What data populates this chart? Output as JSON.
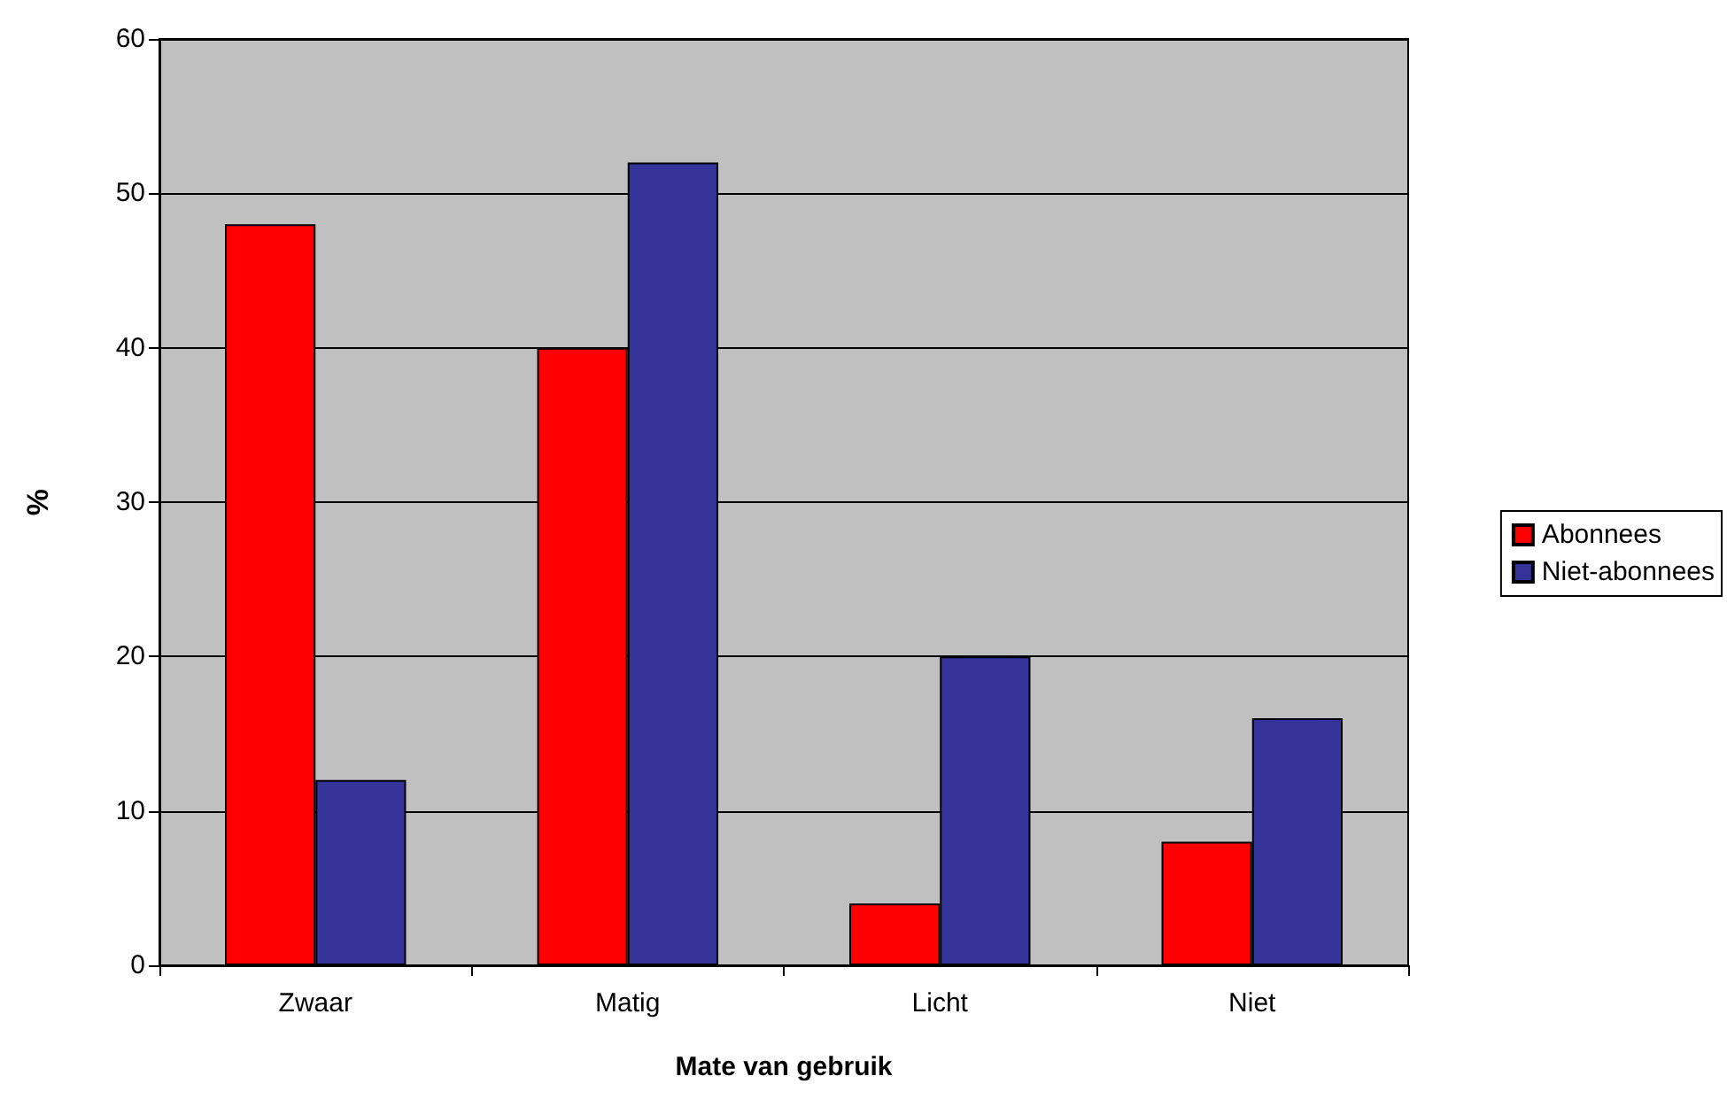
{
  "chart_data": {
    "type": "bar",
    "xlabel": "Mate van gebruik",
    "ylabel": "%",
    "categories": [
      "Zwaar",
      "Matig",
      "Licht",
      "Niet"
    ],
    "series": [
      {
        "name": "Abonnees",
        "color": "#ff0000",
        "values": [
          48,
          40,
          4,
          8
        ]
      },
      {
        "name": "Niet-abonnees",
        "color": "#333399",
        "values": [
          12,
          52,
          20,
          16
        ]
      }
    ],
    "ylim": [
      0,
      60
    ],
    "yticks": [
      0,
      10,
      20,
      30,
      40,
      50,
      60
    ],
    "grid": "y",
    "legend": "right"
  }
}
